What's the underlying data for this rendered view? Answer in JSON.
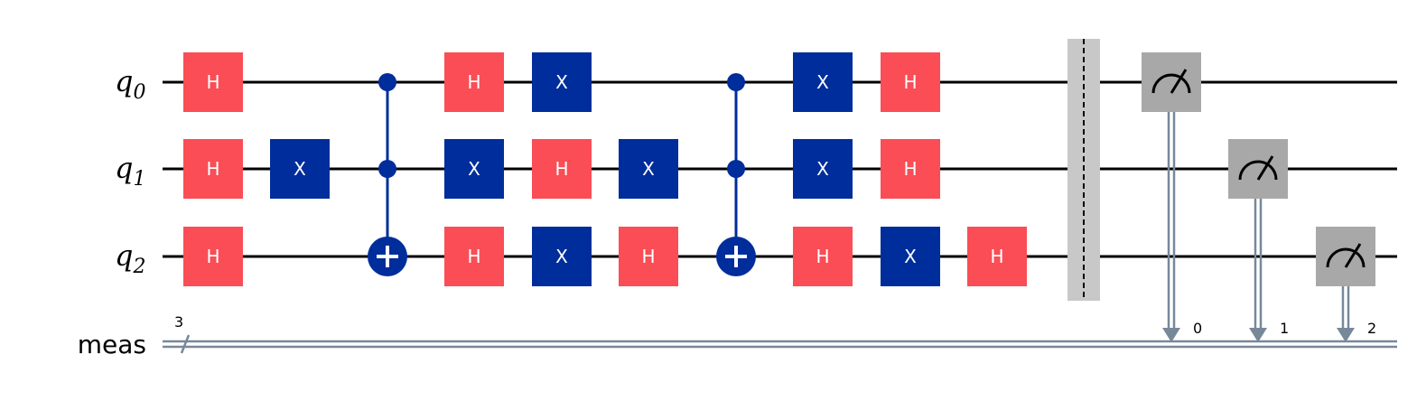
{
  "qubits": [
    {
      "name": "q",
      "index": "0"
    },
    {
      "name": "q",
      "index": "1"
    },
    {
      "name": "q",
      "index": "2"
    }
  ],
  "classical_register": {
    "name": "meas",
    "size": "3"
  },
  "colors": {
    "h_gate": "#fa4d56",
    "x_gate": "#002d9c",
    "barrier": "#c8c8c8",
    "measure": "#a8a8a8",
    "classical_wire": "#778899",
    "wire": "#000000"
  },
  "columns": [
    [
      {
        "type": "H",
        "label": "H",
        "qubit": 0
      },
      {
        "type": "H",
        "label": "H",
        "qubit": 1
      },
      {
        "type": "H",
        "label": "H",
        "qubit": 2
      }
    ],
    [
      {
        "type": "X",
        "label": "X",
        "qubit": 1
      }
    ],
    [
      {
        "type": "CCX",
        "controls": [
          0,
          1
        ],
        "target": 2
      }
    ],
    [
      {
        "type": "H",
        "label": "H",
        "qubit": 0
      },
      {
        "type": "X",
        "label": "X",
        "qubit": 1
      },
      {
        "type": "H",
        "label": "H",
        "qubit": 2
      }
    ],
    [
      {
        "type": "X",
        "label": "X",
        "qubit": 0
      },
      {
        "type": "H",
        "label": "H",
        "qubit": 1
      },
      {
        "type": "X",
        "label": "X",
        "qubit": 2
      }
    ],
    [
      {
        "type": "X",
        "label": "X",
        "qubit": 1
      },
      {
        "type": "H",
        "label": "H",
        "qubit": 2
      }
    ],
    [
      {
        "type": "CCX",
        "controls": [
          0,
          1
        ],
        "target": 2
      }
    ],
    [
      {
        "type": "X",
        "label": "X",
        "qubit": 0
      },
      {
        "type": "X",
        "label": "X",
        "qubit": 1
      },
      {
        "type": "H",
        "label": "H",
        "qubit": 2
      }
    ],
    [
      {
        "type": "H",
        "label": "H",
        "qubit": 0
      },
      {
        "type": "H",
        "label": "H",
        "qubit": 1
      },
      {
        "type": "X",
        "label": "X",
        "qubit": 2
      }
    ],
    [
      {
        "type": "H",
        "label": "H",
        "qubit": 2
      }
    ],
    [
      {
        "type": "BARRIER"
      }
    ],
    [
      {
        "type": "MEASURE",
        "qubit": 0,
        "clbit": "0"
      }
    ],
    [
      {
        "type": "MEASURE",
        "qubit": 1,
        "clbit": "1"
      }
    ],
    [
      {
        "type": "MEASURE",
        "qubit": 2,
        "clbit": "2"
      }
    ]
  ]
}
